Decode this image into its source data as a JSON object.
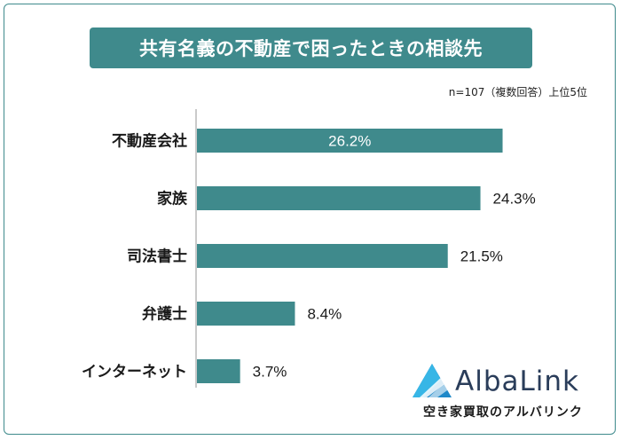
{
  "title": "共有名義の不動産で困ったときの相談先",
  "note": "n=107（複数回答）上位5位",
  "chart_data": {
    "type": "bar",
    "orientation": "horizontal",
    "categories": [
      "不動産会社",
      "家族",
      "司法書士",
      "弁護士",
      "インターネット"
    ],
    "values": [
      26.2,
      24.3,
      21.5,
      8.4,
      3.7
    ],
    "value_labels": [
      "26.2%",
      "24.3%",
      "21.5%",
      "8.4%",
      "3.7%"
    ],
    "unit": "%",
    "xlim": [
      0,
      30
    ],
    "bar_color": "#3f8a8c",
    "grid": false
  },
  "logo": {
    "name": "AlbaLink",
    "tagline": "空き家買取のアルバリンク",
    "colors": [
      "#1e88c8",
      "#37b6e6",
      "#2a3d5a"
    ]
  }
}
